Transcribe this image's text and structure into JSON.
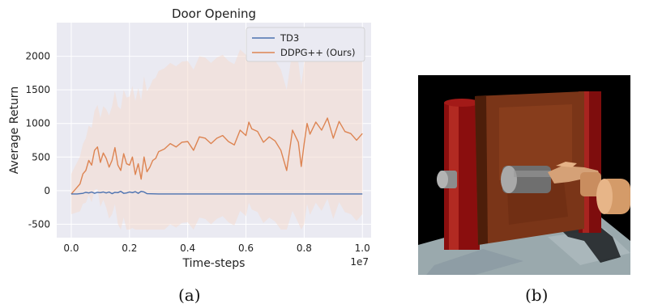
{
  "figure": {
    "caption_a": "(a)",
    "caption_b": "(b)"
  },
  "chart_data": {
    "type": "line",
    "title": "Door Opening",
    "xlabel": "Time-steps",
    "ylabel": "Average Return",
    "x_multiplier_label": "1e7",
    "xlim": [
      -0.05,
      1.03
    ],
    "ylim": [
      -700,
      2500
    ],
    "xticks": [
      0.0,
      0.2,
      0.4,
      0.6,
      0.8,
      1.0
    ],
    "xtick_labels": [
      "0.0",
      "0.2",
      "0.4",
      "0.6",
      "0.8",
      "1.0"
    ],
    "yticks": [
      -500,
      0,
      500,
      1000,
      1500,
      2000
    ],
    "ytick_labels": [
      "-500",
      "0",
      "500",
      "1000",
      "1500",
      "2000"
    ],
    "grid": true,
    "legend_position": "top-right",
    "colors": {
      "background": "#eaeaf2",
      "grid": "#ffffff",
      "td3": "#4c72b0",
      "ddpg": "#dd8452",
      "band": "#f3d9cf"
    },
    "series": [
      {
        "name": "TD3",
        "x": [
          0.0,
          0.02,
          0.04,
          0.05,
          0.06,
          0.07,
          0.08,
          0.09,
          0.1,
          0.11,
          0.12,
          0.13,
          0.14,
          0.15,
          0.16,
          0.17,
          0.18,
          0.19,
          0.2,
          0.21,
          0.22,
          0.23,
          0.24,
          0.25,
          0.26,
          0.3,
          0.4,
          0.5,
          0.6,
          0.7,
          0.8,
          0.9,
          1.0
        ],
        "values": [
          -50,
          -50,
          -40,
          -25,
          -35,
          -20,
          -40,
          -25,
          -30,
          -20,
          -35,
          -20,
          -45,
          -25,
          -30,
          -10,
          -40,
          -35,
          -20,
          -30,
          -15,
          -40,
          -10,
          -20,
          -45,
          -50,
          -50,
          -50,
          -50,
          -50,
          -50,
          -50,
          -50
        ]
      },
      {
        "name": "DDPG++ (Ours)",
        "x": [
          0.0,
          0.02,
          0.03,
          0.04,
          0.05,
          0.06,
          0.07,
          0.08,
          0.09,
          0.1,
          0.11,
          0.12,
          0.13,
          0.14,
          0.15,
          0.16,
          0.17,
          0.18,
          0.19,
          0.2,
          0.21,
          0.22,
          0.23,
          0.24,
          0.25,
          0.26,
          0.27,
          0.28,
          0.29,
          0.3,
          0.32,
          0.34,
          0.36,
          0.38,
          0.4,
          0.42,
          0.44,
          0.46,
          0.48,
          0.5,
          0.52,
          0.54,
          0.56,
          0.58,
          0.6,
          0.61,
          0.62,
          0.64,
          0.66,
          0.68,
          0.7,
          0.72,
          0.74,
          0.76,
          0.78,
          0.79,
          0.8,
          0.81,
          0.82,
          0.84,
          0.86,
          0.88,
          0.9,
          0.92,
          0.94,
          0.96,
          0.98,
          1.0
        ],
        "values": [
          -50,
          50,
          100,
          250,
          300,
          450,
          380,
          600,
          650,
          420,
          560,
          480,
          350,
          450,
          640,
          380,
          300,
          550,
          400,
          380,
          500,
          240,
          400,
          170,
          500,
          280,
          350,
          450,
          480,
          580,
          620,
          700,
          650,
          720,
          730,
          600,
          800,
          780,
          700,
          780,
          820,
          730,
          680,
          900,
          820,
          1020,
          920,
          880,
          720,
          800,
          740,
          600,
          300,
          900,
          720,
          360,
          700,
          1000,
          840,
          1020,
          900,
          1080,
          780,
          1030,
          880,
          850,
          750,
          850
        ]
      }
    ]
  }
}
